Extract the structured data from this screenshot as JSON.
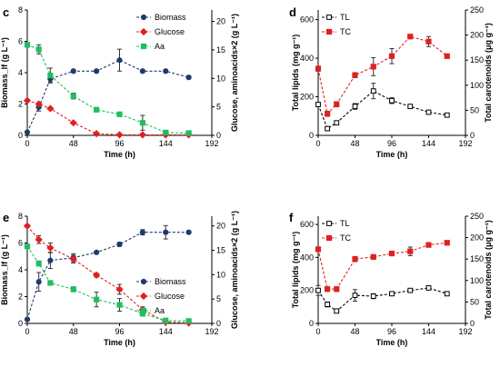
{
  "chart_data": [
    {
      "panel": "c",
      "type": "line",
      "xlabel": "Time (h)",
      "ylabel": "Biomass_lf (g L⁻¹)",
      "y2label": "Glucose, aminoacids×2 (g L⁻¹)",
      "xlim": [
        0,
        192
      ],
      "ylim": [
        0,
        8
      ],
      "y2lim": [
        0,
        22
      ],
      "xticks": [
        0,
        48,
        96,
        144,
        192
      ],
      "yticks": [
        0,
        2,
        4,
        6,
        8
      ],
      "y2ticks": [
        0,
        5,
        10,
        15,
        20
      ],
      "legend_position": "top-right",
      "series": [
        {
          "name": "Biomass",
          "axis": "left",
          "color": "#1f3a6e",
          "marker": "circle",
          "x": [
            0,
            12,
            24,
            48,
            72,
            96,
            120,
            144,
            168
          ],
          "y": [
            0.2,
            1.8,
            3.6,
            4.1,
            4.1,
            4.8,
            4.1,
            4.1,
            3.7
          ],
          "err": [
            0.05,
            0.25,
            0.2,
            0.1,
            0.1,
            0.7,
            0.1,
            0.1,
            0.1
          ]
        },
        {
          "name": "Glucose",
          "axis": "right",
          "color": "#e02020",
          "marker": "diamond",
          "x": [
            0,
            12,
            24,
            48,
            72,
            96,
            120,
            144,
            168
          ],
          "y": [
            6.1,
            5.5,
            4.7,
            2.2,
            0.3,
            0.1,
            0.1,
            0.1,
            0.1
          ],
          "err": [
            0.2,
            0.2,
            0.2,
            0.2,
            0.1,
            0.05,
            0.05,
            0.05,
            0.05
          ]
        },
        {
          "name": "Aa",
          "axis": "right",
          "color": "#1fbf5f",
          "marker": "square",
          "x": [
            0,
            12,
            24,
            48,
            72,
            96,
            120,
            144,
            168
          ],
          "y": [
            15.9,
            15.1,
            10.5,
            6.9,
            4.5,
            3.7,
            2.2,
            0.5,
            0.4
          ],
          "err": [
            0.4,
            0.8,
            1.3,
            0.5,
            0.3,
            0.3,
            1.3,
            0.3,
            0.2
          ]
        }
      ]
    },
    {
      "panel": "d",
      "type": "line",
      "xlabel": "Time (h)",
      "ylabel": "Total lipids (mg g⁻¹)",
      "y2label": "Total carotenoids (μg g⁻¹)",
      "xlim": [
        0,
        192
      ],
      "ylim": [
        0,
        650
      ],
      "y2lim": [
        0,
        250
      ],
      "xticks": [
        0,
        48,
        96,
        144,
        192
      ],
      "yticks": [
        0,
        200,
        400,
        600
      ],
      "y2ticks": [
        0,
        50,
        100,
        150,
        200,
        250
      ],
      "legend_position": "top-left",
      "series": [
        {
          "name": "TL",
          "axis": "left",
          "color": "#000000",
          "marker": "square-open",
          "x": [
            0,
            12,
            24,
            48,
            72,
            96,
            120,
            144,
            168
          ],
          "y": [
            160,
            35,
            65,
            150,
            230,
            180,
            150,
            120,
            105
          ],
          "err": [
            10,
            10,
            10,
            15,
            40,
            15,
            10,
            10,
            10
          ]
        },
        {
          "name": "TC",
          "axis": "right",
          "color": "#e02020",
          "marker": "square",
          "x": [
            0,
            12,
            24,
            48,
            72,
            96,
            120,
            144,
            168
          ],
          "y": [
            133,
            43,
            62,
            120,
            137,
            158,
            197,
            187,
            158
          ],
          "err": [
            5,
            5,
            5,
            5,
            18,
            15,
            4,
            10,
            3
          ]
        }
      ]
    },
    {
      "panel": "e",
      "type": "line",
      "xlabel": "Time (h)",
      "ylabel": "Biomass_lf (g L⁻¹)",
      "y2label": "Glucose, aminoacids×2 (g L⁻¹)",
      "xlim": [
        0,
        192
      ],
      "ylim": [
        0,
        8
      ],
      "y2lim": [
        0,
        22
      ],
      "xticks": [
        0,
        48,
        96,
        144,
        192
      ],
      "yticks": [
        0,
        2,
        4,
        6,
        8
      ],
      "y2ticks": [
        0,
        5,
        10,
        15,
        20
      ],
      "legend_position": "center-right",
      "series": [
        {
          "name": "Biomass",
          "axis": "left",
          "color": "#1f3a6e",
          "marker": "circle",
          "x": [
            0,
            12,
            24,
            48,
            72,
            96,
            120,
            144,
            168
          ],
          "y": [
            0.3,
            3.1,
            4.7,
            4.9,
            5.3,
            5.9,
            6.8,
            6.8,
            6.8
          ],
          "err": [
            0.05,
            0.7,
            0.6,
            0.3,
            0.1,
            0.15,
            0.2,
            0.5,
            0.1
          ]
        },
        {
          "name": "Glucose",
          "axis": "right",
          "color": "#e02020",
          "marker": "diamond",
          "x": [
            0,
            12,
            24,
            48,
            72,
            96,
            120,
            144,
            168
          ],
          "y": [
            20.0,
            17.2,
            15.5,
            13.2,
            9.9,
            7.0,
            2.8,
            0.3,
            0.1
          ],
          "err": [
            0.3,
            0.8,
            1.0,
            0.8,
            0.4,
            1.0,
            0.6,
            0.3,
            0.1
          ]
        },
        {
          "name": "Aa",
          "axis": "right",
          "color": "#1fbf5f",
          "marker": "square",
          "x": [
            0,
            12,
            24,
            48,
            72,
            96,
            120,
            144,
            168
          ],
          "y": [
            15.8,
            12.3,
            8.3,
            7.0,
            4.9,
            3.8,
            2.0,
            0.6,
            0.5
          ],
          "err": [
            0.3,
            0.5,
            0.3,
            0.5,
            1.5,
            1.3,
            0.5,
            0.3,
            0.3
          ]
        }
      ]
    },
    {
      "panel": "f",
      "type": "line",
      "xlabel": "Time (h)",
      "ylabel": "Total lipids (mg g⁻¹)",
      "y2label": "Total carotenoids (μg g⁻¹)",
      "xlim": [
        0,
        192
      ],
      "ylim": [
        0,
        650
      ],
      "y2lim": [
        0,
        250
      ],
      "xticks": [
        0,
        48,
        96,
        144,
        192
      ],
      "yticks": [
        0,
        200,
        400,
        600
      ],
      "y2ticks": [
        0,
        50,
        100,
        150,
        200,
        250
      ],
      "legend_position": "top-left",
      "series": [
        {
          "name": "TL",
          "axis": "left",
          "color": "#000000",
          "marker": "square-open",
          "x": [
            0,
            12,
            24,
            48,
            72,
            96,
            120,
            144,
            168
          ],
          "y": [
            200,
            115,
            75,
            170,
            165,
            180,
            200,
            215,
            180
          ],
          "err": [
            30,
            15,
            10,
            35,
            15,
            10,
            10,
            10,
            10
          ]
        },
        {
          "name": "TC",
          "axis": "right",
          "color": "#e02020",
          "marker": "square",
          "x": [
            0,
            12,
            24,
            48,
            72,
            96,
            120,
            144,
            168
          ],
          "y": [
            173,
            80,
            80,
            150,
            155,
            163,
            168,
            183,
            188
          ],
          "err": [
            5,
            5,
            5,
            6,
            5,
            5,
            10,
            5,
            5
          ]
        }
      ]
    }
  ]
}
